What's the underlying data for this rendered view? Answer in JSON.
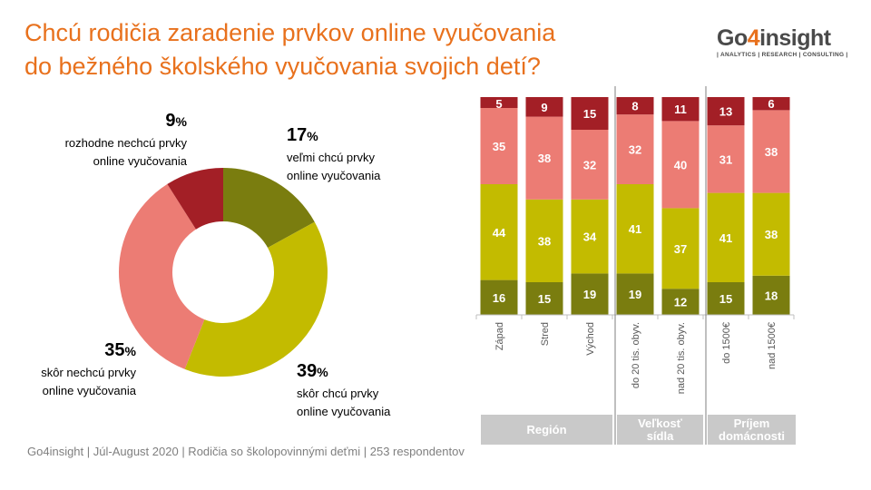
{
  "title": {
    "line1": "Chcú rodičia zaradenie prvkov online vyučovania",
    "line2": "do bežného školského vyučovania svojich detí?"
  },
  "logo": {
    "pre": "Go",
    "four": "4",
    "post": "insight",
    "tagline": "| ANALYTICS | RESEARCH | CONSULTING |"
  },
  "colors": {
    "title": "#e8711d",
    "dark_olive": "#7a7d0f",
    "yellow_olive": "#c3bb00",
    "salmon": "#ec7c74",
    "dark_red": "#a31f26",
    "group_band": "#c9c9c9"
  },
  "footer": "Go4insight | Júl-August  2020 | Rodičia so školopovinnými deťmi | 253 respondentov",
  "chart_data": [
    {
      "type": "pie",
      "slices": [
        {
          "value": 17,
          "pct_label": "%",
          "label_lines": [
            "veľmi chcú prvky",
            "online vyučovania"
          ],
          "color": "#7a7d0f"
        },
        {
          "value": 39,
          "pct_label": "%",
          "label_lines": [
            "skôr chcú prvky",
            "online vyučovania"
          ],
          "color": "#c3bb00"
        },
        {
          "value": 35,
          "pct_label": "%",
          "label_lines": [
            "skôr nechcú prvky",
            "online vyučovania"
          ],
          "color": "#ec7c74"
        },
        {
          "value": 9,
          "pct_label": "%",
          "label_lines": [
            "rozhodne nechcú prvky",
            "online vyučovania"
          ],
          "color": "#a31f26"
        }
      ]
    },
    {
      "type": "bar",
      "stacked": true,
      "categories": [
        "Západ",
        "Stred",
        "Východ",
        "do 20 tis. obyv.",
        "nad 20 tis. obyv.",
        "do 1500€",
        "nad 1500€"
      ],
      "series": [
        {
          "values": [
            16,
            15,
            19,
            19,
            12,
            15,
            18
          ],
          "color": "#7a7d0f"
        },
        {
          "values": [
            44,
            38,
            34,
            41,
            37,
            41,
            38
          ],
          "color": "#c3bb00"
        },
        {
          "values": [
            35,
            38,
            32,
            32,
            40,
            31,
            38
          ],
          "color": "#ec7c74"
        },
        {
          "values": [
            5,
            9,
            15,
            8,
            11,
            13,
            6
          ],
          "color": "#a31f26"
        }
      ],
      "ylim": [
        0,
        100
      ],
      "groups": [
        {
          "label": [
            "Región"
          ],
          "categories": [
            0,
            1,
            2
          ]
        },
        {
          "label": [
            "Veľkosť",
            "sídla"
          ],
          "categories": [
            3,
            4
          ]
        },
        {
          "label": [
            "Príjem",
            "domácnosti"
          ],
          "categories": [
            5,
            6
          ]
        }
      ]
    }
  ]
}
